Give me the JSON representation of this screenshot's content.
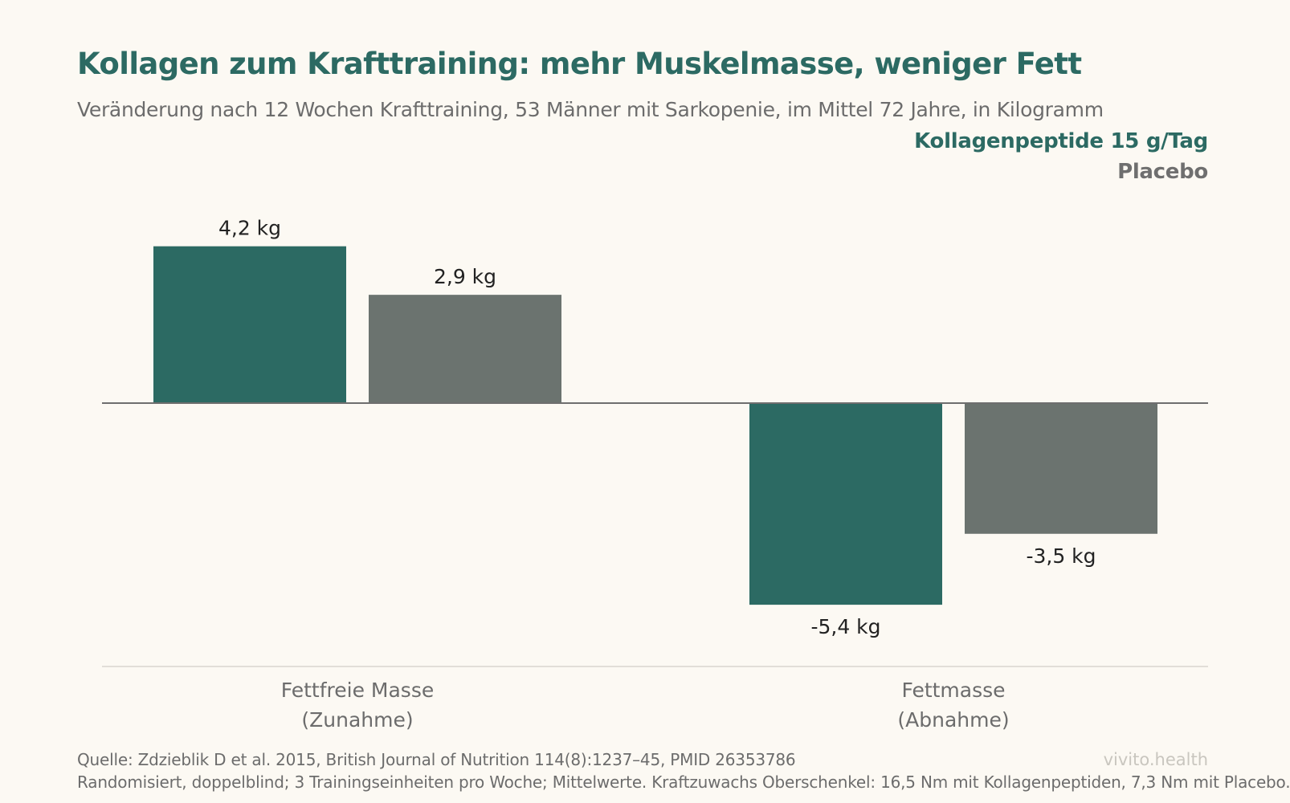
{
  "chart_data": {
    "type": "bar",
    "title": "Kollagen zum Krafttraining: mehr Muskelmasse, weniger Fett",
    "subtitle": "Veränderung nach 12 Wochen Krafttraining, 53 Männer mit Sarkopenie, im Mittel 72 Jahre, in Kilogramm",
    "categories": [
      [
        "Fettfreie Masse",
        "(Zunahme)"
      ],
      [
        "Fettmasse",
        "(Abnahme)"
      ]
    ],
    "series": [
      {
        "name": "Kollagenpeptide 15 g/Tag",
        "color": "#2c6a63",
        "values": [
          4.2,
          -5.4
        ],
        "labels": [
          "4,2 kg",
          "-5,4 kg"
        ]
      },
      {
        "name": "Placebo",
        "color": "#6b736f",
        "values": [
          2.9,
          -3.5
        ],
        "labels": [
          "2,9 kg",
          "-3,5 kg"
        ]
      }
    ],
    "ylim": [
      -7,
      6.5
    ],
    "legend": "top-right",
    "grid": false
  },
  "footer": {
    "source": "Quelle: Zdzieblik D et al. 2015, British Journal of Nutrition 114(8):1237–45, PMID 26353786",
    "note": "Randomisiert, doppelblind; 3 Trainingseinheiten pro Woche; Mittelwerte. Kraftzuwachs Oberschenkel: 16,5 Nm mit Kollagenpeptiden, 7,3 Nm mit Placebo.",
    "brand": "vivito.health"
  }
}
